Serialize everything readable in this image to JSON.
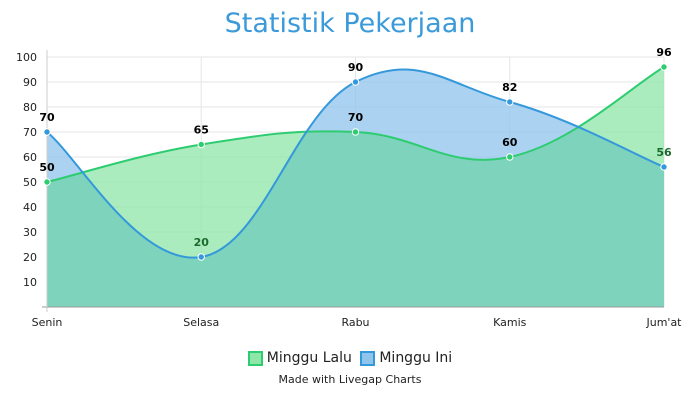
{
  "chart_data": {
    "type": "area",
    "title": "Statistik Pekerjaan",
    "categories": [
      "Senin",
      "Selasa",
      "Rabu",
      "Kamis",
      "Jum'at"
    ],
    "y_ticks": [
      10,
      20,
      30,
      40,
      50,
      60,
      70,
      80,
      90,
      100
    ],
    "ylim": [
      0,
      100
    ],
    "grid": true,
    "legend_position": "bottom",
    "series": [
      {
        "name": "Minggu Lalu",
        "values": [
          50,
          65,
          70,
          60,
          96
        ],
        "line_color": "#2ecc71",
        "fill_color": "#8ee6a8",
        "label_color": "#000000",
        "data_labels": [
          "50",
          "65",
          "70",
          "60",
          "96"
        ]
      },
      {
        "name": "Minggu Ini",
        "values": [
          70,
          20,
          90,
          82,
          56
        ],
        "line_color": "#3498db",
        "fill_color": "#8fc4ec",
        "label_color": "#000000",
        "data_labels": [
          "70",
          "20",
          "90",
          "82",
          "56"
        ]
      }
    ],
    "overlap_color": "#7dd3bb",
    "overlap_label_color": "#1a6b2d",
    "credit": "Made with Livegap Charts"
  }
}
